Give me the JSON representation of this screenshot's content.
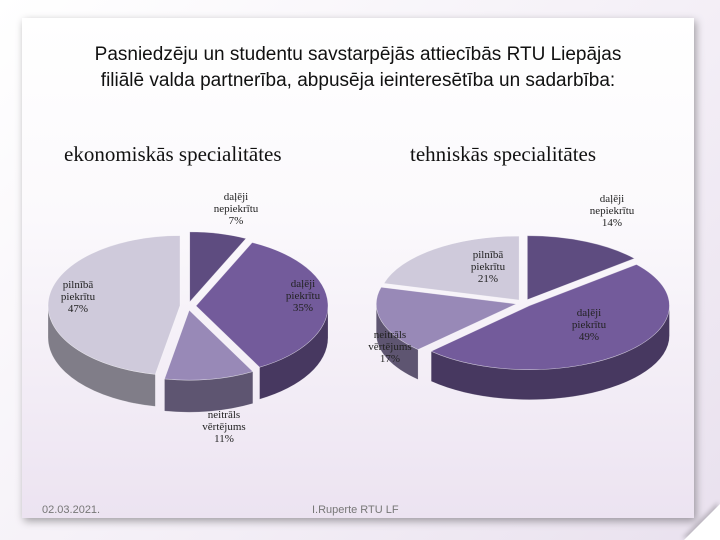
{
  "slide": {
    "title_line1": "Pasniedzēju un studentu savstarpējās attiecībās RTU Liepājas",
    "title_line2": "filiālē valda partnerība, abpusēja ieinteresētība un sadarbība:",
    "footer_date": "02.03.2021.",
    "footer_author": "I.Ruperte RTU LF"
  },
  "chart_data": [
    {
      "type": "pie",
      "title": "ekonomiskās specialitātes",
      "slices": [
        {
          "label": "daļēji nepiekrītu",
          "value": 7,
          "text": "7%",
          "color": "#5e4c80"
        },
        {
          "label": "daļēji piekrītu",
          "value": 35,
          "text": "35%",
          "color": "#735b9b"
        },
        {
          "label": "neitrāls vērtējums",
          "value": 11,
          "text": "11%",
          "color": "#9889b7"
        },
        {
          "label": "pilnībā piekrītu",
          "value": 47,
          "text": "47%",
          "color": "#cfcadb"
        }
      ],
      "style": "3d-exploded"
    },
    {
      "type": "pie",
      "title": "tehniskās specialitātes",
      "slices": [
        {
          "label": "daļēji nepiekrītu",
          "value": 14,
          "text": "14%",
          "color": "#5e4c80"
        },
        {
          "label": "daļēji piekrītu",
          "value": 49,
          "text": "49%",
          "color": "#735b9b"
        },
        {
          "label": "neitrāls vērtējums",
          "value": 17,
          "text": "17%",
          "color": "#9889b7"
        },
        {
          "label": "pilnībā piekrītu",
          "value": 21,
          "text": "21%",
          "color": "#cfcadb"
        }
      ],
      "style": "3d-exploded"
    }
  ]
}
